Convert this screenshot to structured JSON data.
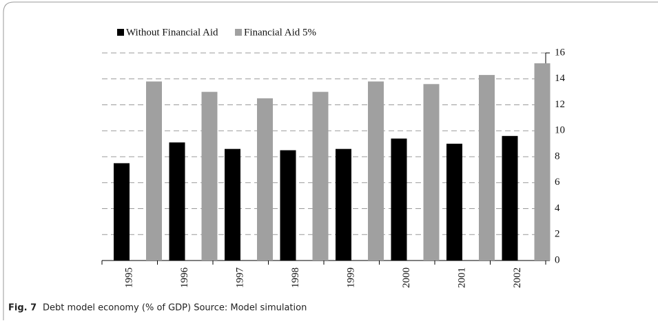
{
  "chart_data": {
    "type": "bar",
    "categories": [
      "1995",
      "1996",
      "1997",
      "1998",
      "1999",
      "2000",
      "2001",
      "2002"
    ],
    "series": [
      {
        "name": "Without Financial Aid",
        "color": "#000000",
        "values": [
          7.5,
          9.1,
          8.6,
          8.5,
          8.6,
          9.4,
          9.0,
          9.6
        ]
      },
      {
        "name": "Financial Aid 5%",
        "color": "#a0a0a0",
        "values": [
          13.8,
          13.0,
          12.5,
          13.0,
          13.8,
          13.6,
          14.3,
          15.2
        ]
      }
    ],
    "ylim": [
      0,
      16
    ],
    "yticks": [
      0,
      2,
      4,
      6,
      8,
      10,
      12,
      14,
      16
    ],
    "grid": true,
    "y_axis_side": "right",
    "caption_label": "Fig. 7",
    "caption": "Debt model economy (% of GDP) Source: Model simulation"
  }
}
